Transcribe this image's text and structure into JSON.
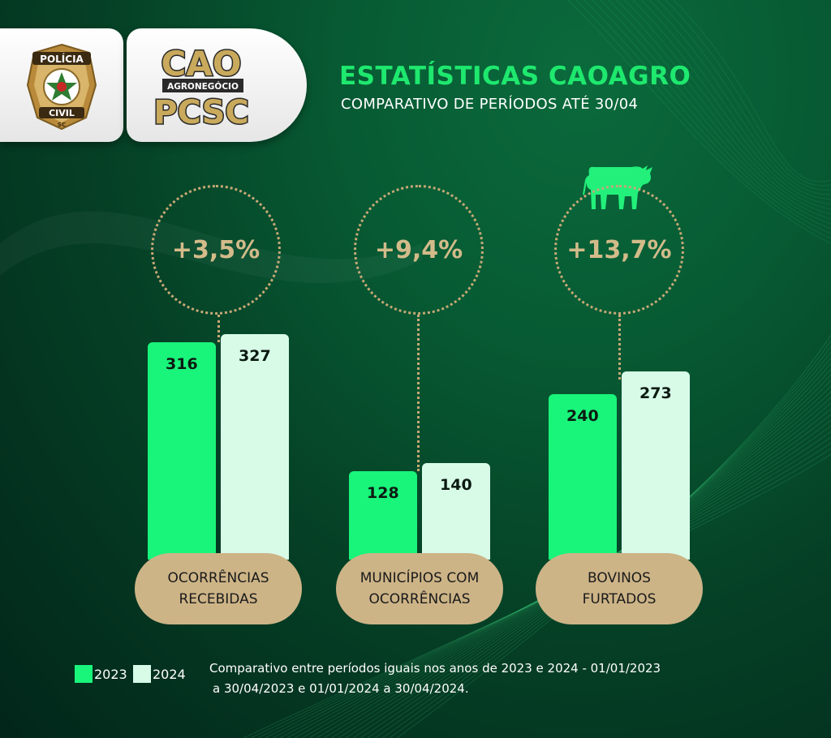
{
  "header": {
    "title": "ESTATÍSTICAS CAOAGRO",
    "subtitle": "COMPARATIVO DE PERÍODOS ATÉ 30/04"
  },
  "logos": {
    "badge_top": "POLÍCIA",
    "badge_bottom": "CIVIL",
    "badge_state": "SC",
    "cao_top": "CAO",
    "cao_middle": "AGRONEGÓCIO",
    "cao_bottom": "PCSC"
  },
  "colors": {
    "series_2023": "#19f47a",
    "series_2024": "#d8fbe8",
    "accent_gold": "#cdb487",
    "title_green": "#1ee86e"
  },
  "icons": {
    "cow": "cow-icon"
  },
  "chart_data": {
    "type": "bar",
    "title": "ESTATÍSTICAS CAOAGRO",
    "subtitle": "COMPARATIVO DE PERÍODOS ATÉ 30/04",
    "categories": [
      "OCORRÊNCIAS RECEBIDAS",
      "MUNICÍPIOS COM OCORRÊNCIAS",
      "BOVINOS FURTADOS"
    ],
    "category_lines": [
      [
        "OCORRÊNCIAS",
        "RECEBIDAS"
      ],
      [
        "MUNICÍPIOS COM",
        "OCORRÊNCIAS"
      ],
      [
        "BOVINOS",
        "FURTADOS"
      ]
    ],
    "series": [
      {
        "name": "2023",
        "values": [
          316,
          128,
          240
        ]
      },
      {
        "name": "2024",
        "values": [
          327,
          140,
          273
        ]
      }
    ],
    "value_labels": [
      [
        "316",
        "327"
      ],
      [
        "128",
        "140"
      ],
      [
        "240",
        "273"
      ]
    ],
    "change_labels": [
      "+3,5%",
      "+9,4%",
      "+13,7%"
    ],
    "legend": [
      "2023",
      "2024"
    ],
    "legend_position": "bottom-left",
    "grid": false
  },
  "footnote": {
    "line1": "Comparativo entre períodos iguais nos anos de 2023 e 2024 - 01/01/2023",
    "line2": "a 30/04/2023 e 01/01/2024 a 30/04/2024."
  }
}
